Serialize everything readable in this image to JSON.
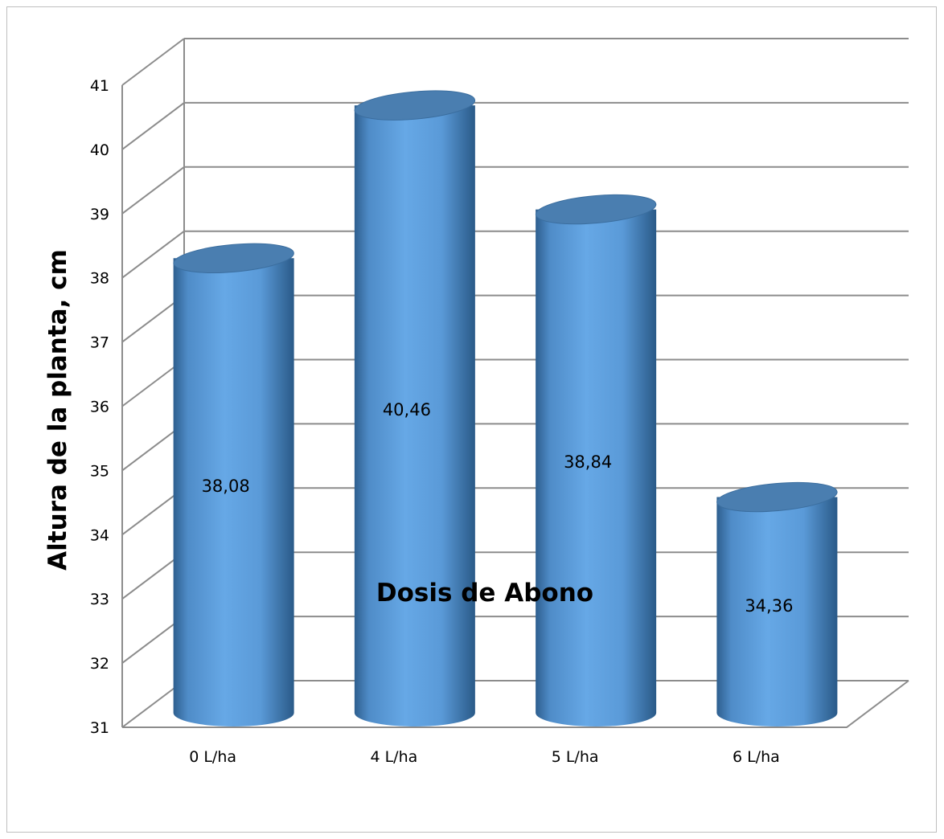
{
  "chart_data": {
    "type": "bar",
    "title": "",
    "xlabel": "Dosis de Abono",
    "ylabel": "Altura de la planta, cm",
    "categories": [
      "0 L/ha",
      "4 L/ha",
      "5 L/ha",
      "6 L/ha"
    ],
    "values": [
      38.08,
      40.46,
      38.84,
      34.36
    ],
    "value_labels": [
      "38,08",
      "40,46",
      "38,84",
      "34,36"
    ],
    "ylim": [
      31,
      41
    ],
    "yticks": [
      "31",
      "32",
      "33",
      "34",
      "35",
      "36",
      "37",
      "38",
      "39",
      "40",
      "41"
    ],
    "grid": true,
    "legend": "none",
    "style": "3d-cylinder",
    "colors": {
      "bar": "#5b9bd5",
      "bar_dark": "#2e5f8f",
      "bar_top": "#4a7eb0",
      "grid": "#8c8c8c"
    }
  }
}
